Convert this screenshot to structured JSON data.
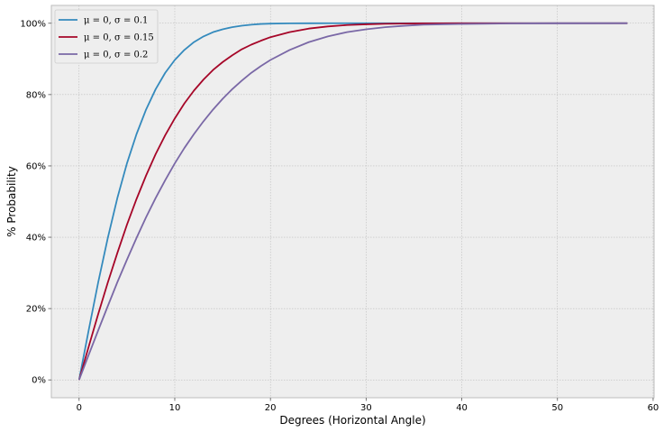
{
  "chart_data": {
    "type": "line",
    "xlabel": "Degrees (Horizontal Angle)",
    "ylabel": "% Probability",
    "xlim": [
      -2.9,
      60.1
    ],
    "ylim": [
      -5,
      105
    ],
    "x_ticks": [
      0,
      10,
      20,
      30,
      40,
      50,
      60
    ],
    "y_ticks": [
      0,
      20,
      40,
      60,
      80,
      100
    ],
    "y_tick_labels": [
      "0%",
      "20%",
      "40%",
      "60%",
      "80%",
      "100%"
    ],
    "grid": true,
    "legend_position": "top-left",
    "x": [
      0,
      1,
      2,
      3,
      4,
      5,
      6,
      7,
      8,
      9,
      10,
      11,
      12,
      13,
      14,
      15,
      16,
      17,
      18,
      19,
      20,
      22,
      24,
      26,
      28,
      30,
      32,
      34,
      36,
      38,
      40,
      45,
      50,
      57.3
    ],
    "series": [
      {
        "name": "μ = 0, σ = 0.1",
        "color": "#348ABD",
        "values": [
          0,
          13.9,
          27.4,
          39.8,
          51.0,
          60.7,
          68.9,
          75.8,
          81.5,
          86.1,
          89.7,
          92.5,
          94.7,
          96.3,
          97.5,
          98.3,
          98.9,
          99.3,
          99.6,
          99.8,
          99.9,
          99.97,
          99.99,
          100,
          100,
          100,
          100,
          100,
          100,
          100,
          100,
          100,
          100,
          100
        ]
      },
      {
        "name": "μ = 0, σ = 0.15",
        "color": "#A60628",
        "values": [
          0,
          9.3,
          18.5,
          27.3,
          35.6,
          43.5,
          50.7,
          57.3,
          63.3,
          68.6,
          73.3,
          77.5,
          81.1,
          84.2,
          86.9,
          89.1,
          91.0,
          92.7,
          94.0,
          95.1,
          96.1,
          97.5,
          98.5,
          99.1,
          99.5,
          99.7,
          99.85,
          99.92,
          99.96,
          99.98,
          99.99,
          100,
          100,
          100
        ]
      },
      {
        "name": "μ = 0, σ = 0.2",
        "color": "#7A68A6",
        "values": [
          0,
          7.0,
          13.9,
          20.7,
          27.4,
          33.7,
          39.8,
          45.6,
          51.0,
          56.0,
          60.7,
          65.0,
          68.9,
          72.5,
          75.8,
          78.8,
          81.5,
          83.9,
          86.1,
          88.0,
          89.7,
          92.5,
          94.7,
          96.3,
          97.5,
          98.3,
          98.9,
          99.3,
          99.6,
          99.7,
          99.8,
          99.95,
          99.99,
          100
        ]
      }
    ]
  }
}
